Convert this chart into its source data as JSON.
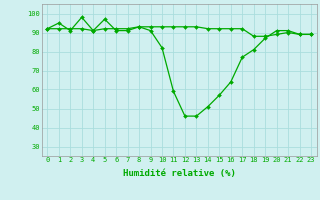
{
  "title": "",
  "xlabel": "Humidité relative (%)",
  "ylabel": "",
  "background_color": "#d0f0f0",
  "grid_color": "#aadddd",
  "line_color": "#00aa00",
  "marker_color": "#00aa00",
  "xlim": [
    -0.5,
    23.5
  ],
  "ylim": [
    25,
    105
  ],
  "yticks": [
    30,
    40,
    50,
    60,
    70,
    80,
    90,
    100
  ],
  "xticks": [
    0,
    1,
    2,
    3,
    4,
    5,
    6,
    7,
    8,
    9,
    10,
    11,
    12,
    13,
    14,
    15,
    16,
    17,
    18,
    19,
    20,
    21,
    22,
    23
  ],
  "series1": [
    92,
    95,
    91,
    98,
    91,
    97,
    91,
    91,
    93,
    91,
    82,
    59,
    46,
    46,
    51,
    57,
    64,
    77,
    81,
    87,
    91,
    91,
    89,
    89
  ],
  "series2": [
    92,
    92,
    92,
    92,
    91,
    92,
    92,
    92,
    93,
    93,
    93,
    93,
    93,
    93,
    92,
    92,
    92,
    92,
    88,
    88,
    89,
    90,
    89,
    89
  ],
  "tick_fontsize": 5.0,
  "xlabel_fontsize": 6.5,
  "linewidth": 0.9,
  "markersize": 2.0
}
